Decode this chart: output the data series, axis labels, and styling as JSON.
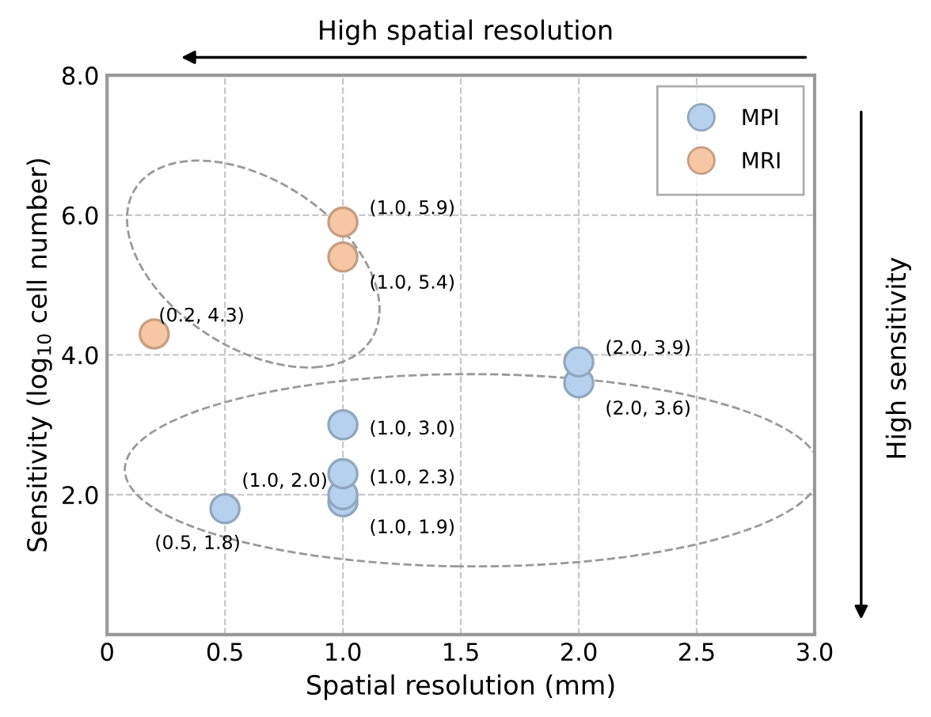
{
  "chart_data": {
    "type": "scatter",
    "xlabel": "Spatial resolution (mm)",
    "ylabel": "Sensitivity (log$_{10}$ cell number)",
    "annotations": [
      "High spatial resolution",
      "High sensitivity"
    ],
    "series": [
      {
        "name": "MPI",
        "color": "#b5d1ee",
        "x": [
          0.5,
          1.0,
          1.0,
          1.0,
          1.0,
          2.0,
          2.0
        ],
        "values": [
          1.8,
          1.9,
          2.0,
          2.3,
          3.0,
          3.6,
          3.9
        ],
        "value_labels": [
          "(0.5, 1.8)",
          "(1.0, 1.9)",
          "(1.0, 2.0)",
          "(1.0, 2.3)",
          "(1.0, 3.0)",
          "(2.0, 3.6)",
          "(2.0, 3.9)"
        ]
      },
      {
        "name": "MRI",
        "color": "#f7c6a2",
        "x": [
          0.2,
          1.0,
          1.0
        ],
        "values": [
          4.3,
          5.4,
          5.9
        ],
        "value_labels": [
          "(0.2, 4.3)",
          "(1.0, 5.4)",
          "(1.0, 5.9)"
        ]
      }
    ],
    "xlim": [
      0,
      3
    ],
    "ylim": [
      0,
      8
    ],
    "xticks": [
      0,
      0.5,
      {
        "value": 1,
        "label": "1.0"
      },
      1.5,
      {
        "value": 2,
        "label": "2.0"
      },
      2.5,
      {
        "value": 3,
        "label": "3.0"
      }
    ],
    "yticks": [
      {
        "value": 2,
        "label": "2.0"
      },
      {
        "value": 4,
        "label": "4.0"
      },
      {
        "value": 6,
        "label": "6.0"
      },
      {
        "value": 8,
        "label": "8.0"
      }
    ],
    "grid": true,
    "legend": "top right",
    "marker": "circle"
  }
}
